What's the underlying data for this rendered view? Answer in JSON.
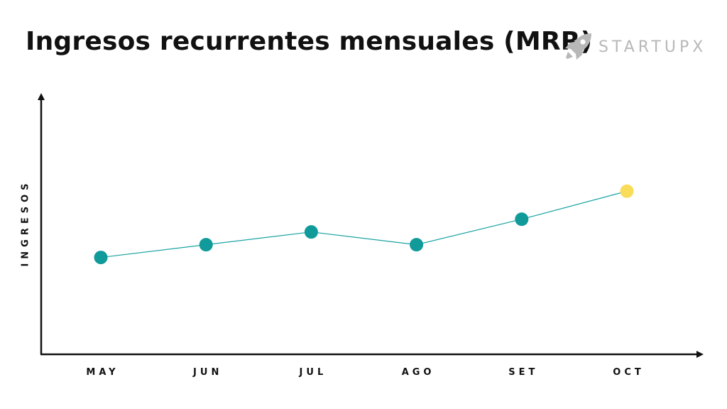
{
  "colors": {
    "line": "#1aa3a3",
    "point": "#109a9a",
    "highlight": "#f8dc5a",
    "axis": "#111111",
    "brand": "#b8b8b8"
  },
  "brand": {
    "name": "STARTUPX",
    "icon": "rocket-icon"
  },
  "chart_data": {
    "type": "line",
    "title": "Ingresos recurrentes mensuales (MRR)",
    "xlabel": "",
    "ylabel": "INGRESOS",
    "categories": [
      "MAY",
      "JUN",
      "JUL",
      "AGO",
      "SET",
      "OCT"
    ],
    "series": [
      {
        "values": [
          38,
          43,
          48,
          43,
          53,
          64
        ]
      }
    ],
    "highlight_index": 5,
    "ylim": [
      0,
      100
    ],
    "grid": false,
    "y_tick_labels": false
  }
}
